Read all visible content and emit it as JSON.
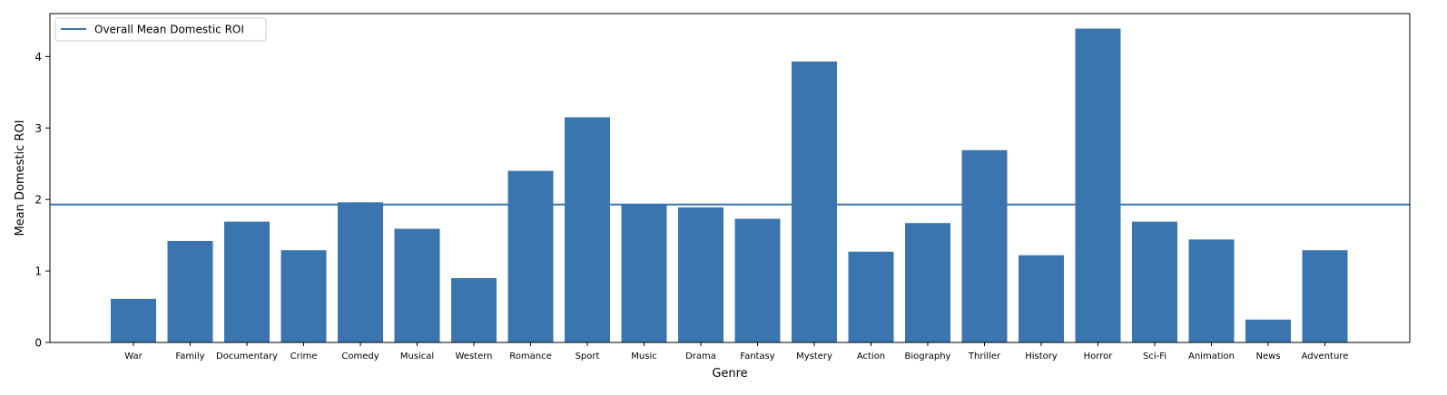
{
  "chart_data": {
    "type": "bar",
    "xlabel": "Genre",
    "ylabel": "Mean Domestic ROI",
    "categories": [
      "War",
      "Family",
      "Documentary",
      "Crime",
      "Comedy",
      "Musical",
      "Western",
      "Romance",
      "Sport",
      "Music",
      "Drama",
      "Fantasy",
      "Mystery",
      "Action",
      "Biography",
      "Thriller",
      "History",
      "Horror",
      "Sci-Fi",
      "Animation",
      "News",
      "Adventure"
    ],
    "values": [
      0.61,
      1.42,
      1.69,
      1.29,
      1.96,
      1.59,
      0.9,
      2.4,
      3.15,
      1.93,
      1.89,
      1.73,
      3.93,
      1.27,
      1.67,
      2.69,
      1.22,
      4.39,
      1.69,
      1.44,
      0.32,
      1.29
    ],
    "ylim": [
      0,
      4.6
    ],
    "yticks": [
      0,
      1,
      2,
      3,
      4
    ],
    "reference_line": {
      "name": "Overall Mean Domestic ROI",
      "value": 1.93
    },
    "legend": {
      "position": "top-left",
      "entries": [
        "Overall Mean Domestic ROI"
      ]
    },
    "grid": false,
    "colors": {
      "bar": "#3b75af",
      "line": "#3b75af",
      "axes": "#000000"
    }
  }
}
